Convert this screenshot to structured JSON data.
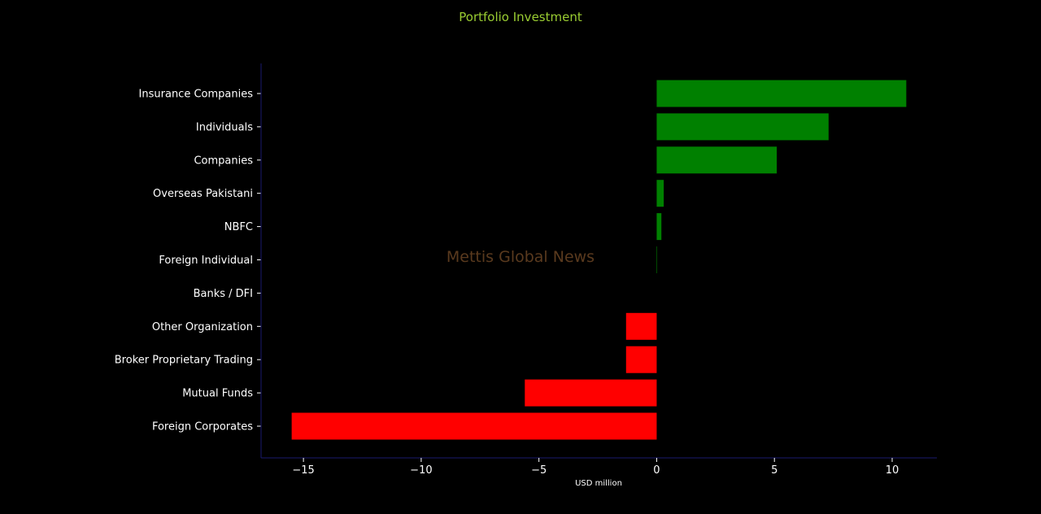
{
  "chart_data": {
    "type": "bar",
    "orientation": "horizontal",
    "title": "Portfolio Investment",
    "xlabel": "USD million",
    "ylabel": "",
    "watermark": "Mettis Global News",
    "categories": [
      "Insurance Companies",
      "Individuals",
      "Companies",
      "Overseas Pakistani",
      "NBFC",
      "Foreign Individual",
      "Banks / DFI",
      "Other Organization",
      "Broker Proprietary Trading",
      "Mutual Funds",
      "Foreign Corporates "
    ],
    "values": [
      10.6,
      7.3,
      5.1,
      0.3,
      0.2,
      0.02,
      0.0,
      -1.3,
      -1.3,
      -5.6,
      -15.5
    ],
    "xlim": [
      -16.8,
      11.9
    ],
    "xticks": [
      -15,
      -10,
      -5,
      0,
      5,
      10
    ],
    "xtick_labels": [
      "−15",
      "−10",
      "−5",
      "0",
      "5",
      "10"
    ],
    "grid": false,
    "legend": "none",
    "colors": {
      "positive": "#008000",
      "negative": "#ff0000",
      "title": "#9acd32",
      "text": "#ffffff",
      "axis": "#1a1a6e",
      "watermark": "#5a3a1e",
      "background": "#000000"
    }
  }
}
